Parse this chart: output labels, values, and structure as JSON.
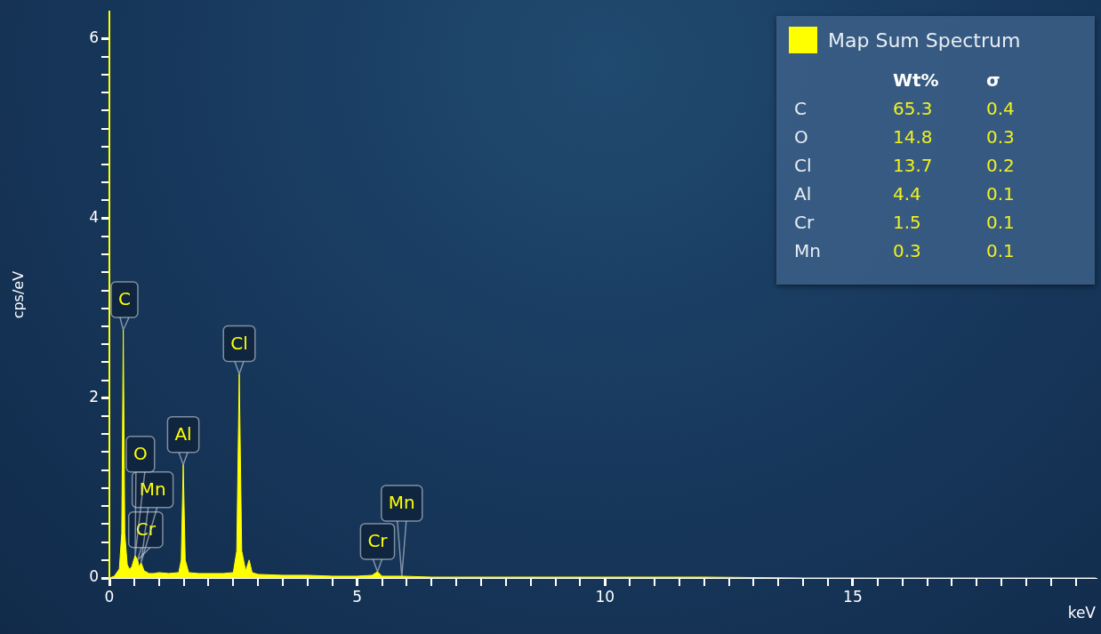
{
  "chart_data": [
    {
      "type": "area",
      "xlabel": "keV",
      "ylabel": "cps/eV",
      "legend": "top right",
      "x": [
        0,
        0.1,
        0.2,
        0.25,
        0.28,
        0.31,
        0.36,
        0.4,
        0.45,
        0.52,
        0.57,
        0.6,
        0.64,
        0.7,
        0.8,
        0.9,
        1.0,
        1.2,
        1.4,
        1.45,
        1.49,
        1.53,
        1.6,
        1.8,
        2.0,
        2.3,
        2.5,
        2.57,
        2.62,
        2.67,
        2.75,
        2.82,
        2.88,
        3.0,
        3.5,
        4.0,
        4.5,
        5.0,
        5.3,
        5.41,
        5.5,
        5.9,
        6.5,
        8,
        10,
        12,
        14,
        19.9
      ],
      "series": [
        {
          "name": "Map Sum Spectrum",
          "color": "#ffff00",
          "values": [
            0,
            0.02,
            0.1,
            0.5,
            2.76,
            0.5,
            0.15,
            0.1,
            0.12,
            0.25,
            0.2,
            0.12,
            0.17,
            0.08,
            0.05,
            0.05,
            0.06,
            0.05,
            0.06,
            0.2,
            1.26,
            0.2,
            0.06,
            0.05,
            0.05,
            0.05,
            0.06,
            0.3,
            2.27,
            0.3,
            0.08,
            0.2,
            0.06,
            0.04,
            0.03,
            0.03,
            0.02,
            0.02,
            0.03,
            0.07,
            0.02,
            0.02,
            0.01,
            0.01,
            0.01,
            0.01,
            0,
            0
          ]
        }
      ],
      "xlim": [
        0,
        19.9
      ],
      "xticks": [
        0,
        {
          "value": 0.5,
          "label": null
        },
        {
          "value": 1,
          "label": null
        },
        {
          "value": 1.5,
          "label": null
        },
        {
          "value": 2,
          "label": null
        },
        {
          "value": 2.5,
          "label": null
        },
        {
          "value": 3,
          "label": null
        },
        {
          "value": 3.5,
          "label": null
        },
        {
          "value": 4,
          "label": null
        },
        {
          "value": 4.5,
          "label": null
        },
        5,
        {
          "value": 5.5,
          "label": null
        },
        {
          "value": 6,
          "label": null
        },
        {
          "value": 6.5,
          "label": null
        },
        {
          "value": 7,
          "label": null
        },
        {
          "value": 7.5,
          "label": null
        },
        {
          "value": 8,
          "label": null
        },
        {
          "value": 8.5,
          "label": null
        },
        {
          "value": 9,
          "label": null
        },
        {
          "value": 9.5,
          "label": null
        },
        10,
        {
          "value": 10.5,
          "label": null
        },
        {
          "value": 11,
          "label": null
        },
        {
          "value": 11.5,
          "label": null
        },
        {
          "value": 12,
          "label": null
        },
        {
          "value": 12.5,
          "label": null
        },
        {
          "value": 13,
          "label": null
        },
        {
          "value": 13.5,
          "label": null
        },
        {
          "value": 14,
          "label": null
        },
        {
          "value": 14.5,
          "label": null
        },
        15,
        {
          "value": 15.5,
          "label": null
        },
        {
          "value": 16,
          "label": null
        },
        {
          "value": 16.5,
          "label": null
        },
        {
          "value": 17,
          "label": null
        },
        {
          "value": 17.5,
          "label": null
        },
        {
          "value": 18,
          "label": null
        },
        {
          "value": 18.5,
          "label": null
        },
        {
          "value": 19,
          "label": null
        },
        {
          "value": 19.5,
          "label": null
        }
      ],
      "ylim": [
        0,
        6.3
      ],
      "yticks": [
        0,
        {
          "value": 0.2,
          "label": null
        },
        {
          "value": 0.4,
          "label": null
        },
        {
          "value": 0.6,
          "label": null
        },
        {
          "value": 0.8,
          "label": null
        },
        {
          "value": 1,
          "label": null
        },
        {
          "value": 1.2,
          "label": null
        },
        {
          "value": 1.4,
          "label": null
        },
        {
          "value": 1.6,
          "label": null
        },
        {
          "value": 1.8,
          "label": null
        },
        2,
        {
          "value": 2.2,
          "label": null
        },
        {
          "value": 2.4,
          "label": null
        },
        {
          "value": 2.6,
          "label": null
        },
        {
          "value": 2.8,
          "label": null
        },
        {
          "value": 3,
          "label": null
        },
        {
          "value": 3.2,
          "label": null
        },
        {
          "value": 3.4,
          "label": null
        },
        {
          "value": 3.6,
          "label": null
        },
        {
          "value": 3.8,
          "label": null
        },
        4,
        {
          "value": 4.2,
          "label": null
        },
        {
          "value": 4.4,
          "label": null
        },
        {
          "value": 4.6,
          "label": null
        },
        {
          "value": 4.8,
          "label": null
        },
        {
          "value": 5,
          "label": null
        },
        {
          "value": 5.2,
          "label": null
        },
        {
          "value": 5.4,
          "label": null
        },
        {
          "value": 5.6,
          "label": null
        },
        {
          "value": 5.8,
          "label": null
        },
        6
      ],
      "annotations": [
        {
          "text": "C",
          "x": 0.28,
          "y": 2.76
        },
        {
          "text": "Cl",
          "x": 2.62,
          "y": 2.27
        },
        {
          "text": "Al",
          "x": 1.49,
          "y": 1.26
        },
        {
          "text": "Cr",
          "x": 0.57,
          "y": 0.2
        },
        {
          "text": "Mn",
          "x": 0.64,
          "y": 0.17
        },
        {
          "text": "O",
          "x": 0.52,
          "y": 0.25
        },
        {
          "text": "Cr",
          "x": 5.41,
          "y": 0.07
        },
        {
          "text": "Mn",
          "x": 5.9,
          "y": 0.02
        }
      ]
    },
    {
      "type": "other",
      "categories": [
        "C",
        "O",
        "Cl",
        "Al",
        "Cr",
        "Mn"
      ],
      "data_labels": true,
      "series": [
        {
          "name": "Wt%",
          "values": [
            65.3,
            14.8,
            13.7,
            4.4,
            1.5,
            0.3
          ]
        },
        {
          "name": "σ",
          "values": [
            0.4,
            0.3,
            0.2,
            0.1,
            0.1,
            0.1
          ]
        }
      ]
    }
  ]
}
